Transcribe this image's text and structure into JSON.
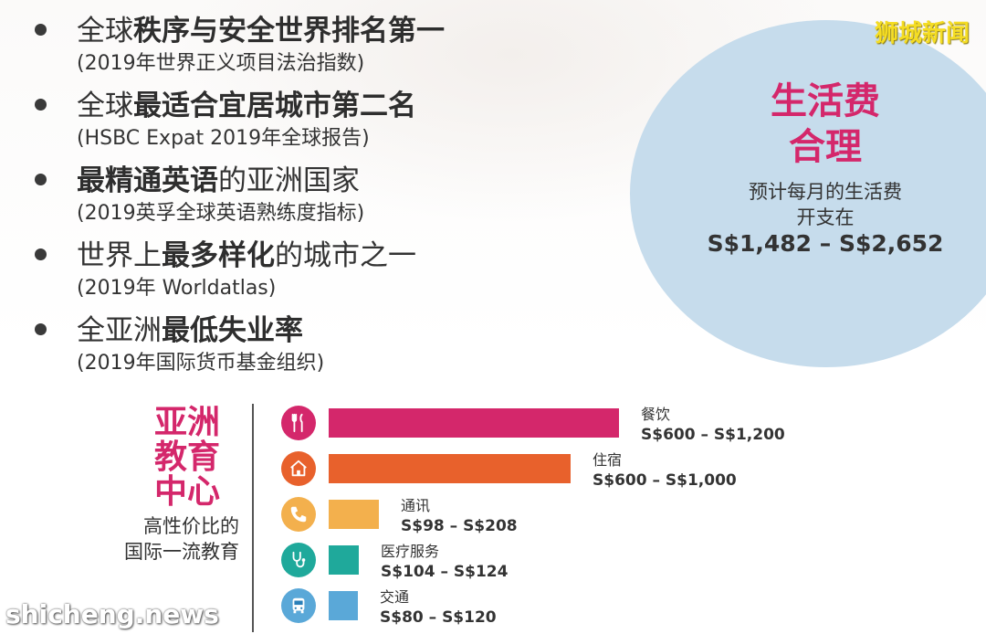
{
  "watermarks": {
    "top": "狮城新闻",
    "bottom": "shicheng.news"
  },
  "facts": [
    {
      "pre": "全球",
      "bold": "秩序与安全世界排名第一",
      "post": "",
      "source": "(2019年世界正义项目法治指数)"
    },
    {
      "pre": "全球",
      "bold": "最适合宜居城市第二名",
      "post": "",
      "source": "(HSBC Expat 2019年全球报告)"
    },
    {
      "pre": "",
      "bold": "最精通英语",
      "post": "的亚洲国家",
      "source": "(2019英孚全球英语熟练度指标)"
    },
    {
      "pre": "世界上",
      "bold": "最多样化",
      "post": "的城市之一",
      "source": "(2019年 Worldatlas)"
    },
    {
      "pre": "全亚洲",
      "bold": "最低失业率",
      "post": "",
      "source": "(2019年国际货币基金组织)"
    }
  ],
  "cost": {
    "title_line1": "生活费",
    "title_line2": "合理",
    "subtitle_line1": "预计每月的生活费",
    "subtitle_line2": "开支在",
    "range": "S$1,482 – S$2,652"
  },
  "education": {
    "title_line1": "亚洲",
    "title_line2": "教育",
    "title_line3": "中心",
    "sub_line1": "高性价比的",
    "sub_line2": "国际一流教育"
  },
  "colors": {
    "accent": "#d4276b",
    "circle": "#c6dcec"
  },
  "chart_data": {
    "type": "bar",
    "orientation": "horizontal",
    "unit": "S$",
    "categories": [
      "餐饮",
      "住宿",
      "通讯",
      "医疗服务",
      "交通"
    ],
    "value_labels": [
      "S$600 – S$1,200",
      "S$600 – S$1,000",
      "S$98 – S$208",
      "S$104 – S$124",
      "S$80 – S$120"
    ],
    "values": [
      1200,
      1000,
      208,
      124,
      120
    ],
    "colors": [
      "#d4276b",
      "#e8612c",
      "#f3b04d",
      "#1fa99b",
      "#5aa8d8"
    ],
    "icons": [
      "fork-knife-icon",
      "house-icon",
      "phone-icon",
      "stethoscope-icon",
      "bus-icon"
    ],
    "xlim": [
      0,
      1200
    ]
  }
}
